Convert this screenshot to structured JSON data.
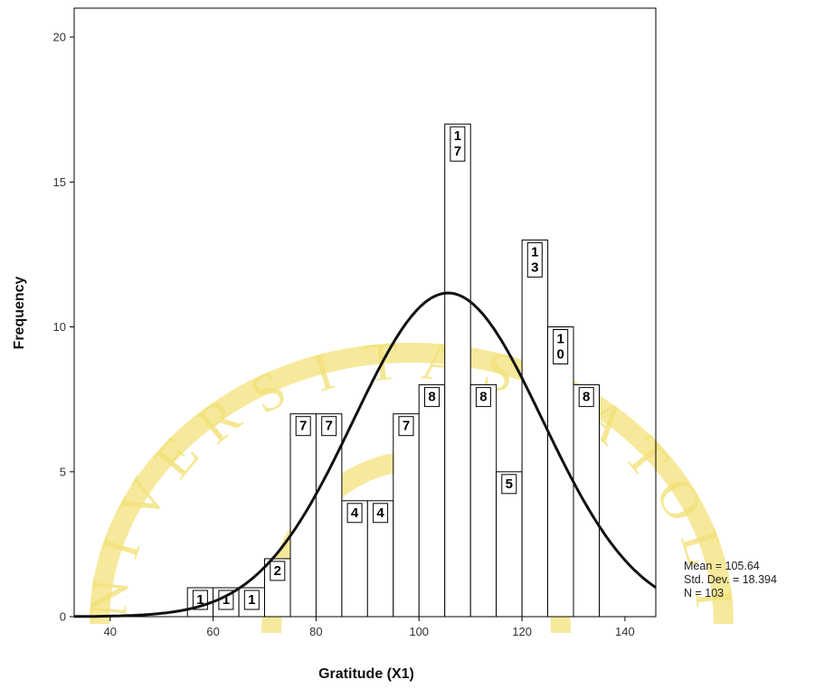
{
  "chart_data": {
    "type": "bar",
    "subtype": "histogram",
    "xlabel": "Gratitude (X1)",
    "ylabel": "Frequency",
    "xlim": [
      33,
      146
    ],
    "ylim": [
      0,
      21
    ],
    "x_ticks": [
      "40",
      "60",
      "80",
      "100",
      "120",
      "140"
    ],
    "y_ticks": [
      "0",
      "5",
      "10",
      "15",
      "20"
    ],
    "bin_width": 5,
    "bins": [
      {
        "start": 55,
        "end": 60,
        "value": 1,
        "label": [
          "1"
        ]
      },
      {
        "start": 60,
        "end": 65,
        "value": 1,
        "label": [
          "1"
        ]
      },
      {
        "start": 65,
        "end": 70,
        "value": 1,
        "label": [
          "1"
        ]
      },
      {
        "start": 70,
        "end": 75,
        "value": 2,
        "label": [
          "2"
        ]
      },
      {
        "start": 75,
        "end": 80,
        "value": 7,
        "label": [
          "7"
        ]
      },
      {
        "start": 80,
        "end": 85,
        "value": 7,
        "label": [
          "7"
        ]
      },
      {
        "start": 85,
        "end": 90,
        "value": 4,
        "label": [
          "4"
        ]
      },
      {
        "start": 90,
        "end": 95,
        "value": 4,
        "label": [
          "4"
        ]
      },
      {
        "start": 95,
        "end": 100,
        "value": 7,
        "label": [
          "7"
        ]
      },
      {
        "start": 100,
        "end": 105,
        "value": 8,
        "label": [
          "8"
        ]
      },
      {
        "start": 105,
        "end": 110,
        "value": 17,
        "label": [
          "1",
          "7"
        ]
      },
      {
        "start": 110,
        "end": 115,
        "value": 8,
        "label": [
          "8"
        ]
      },
      {
        "start": 115,
        "end": 120,
        "value": 5,
        "label": [
          "5"
        ]
      },
      {
        "start": 120,
        "end": 125,
        "value": 13,
        "label": [
          "1",
          "3"
        ]
      },
      {
        "start": 125,
        "end": 130,
        "value": 10,
        "label": [
          "1",
          "0"
        ]
      },
      {
        "start": 130,
        "end": 135,
        "value": 8,
        "label": [
          "8"
        ]
      }
    ],
    "normal_curve": {
      "mean": 105.64,
      "std_dev": 18.394,
      "n": 103
    },
    "stats": {
      "mean": "Mean = 105.64",
      "std_dev": "Std. Dev. = 18.394",
      "n": "N = 103"
    },
    "grid": false,
    "legend": "none"
  },
  "watermark": {
    "color": "#f3e27a",
    "letters": [
      "N",
      "I",
      "V",
      "E",
      "R",
      "S",
      "I",
      "T",
      "A",
      "S",
      "K",
      "A",
      "T",
      "O",
      "L",
      "I"
    ]
  }
}
